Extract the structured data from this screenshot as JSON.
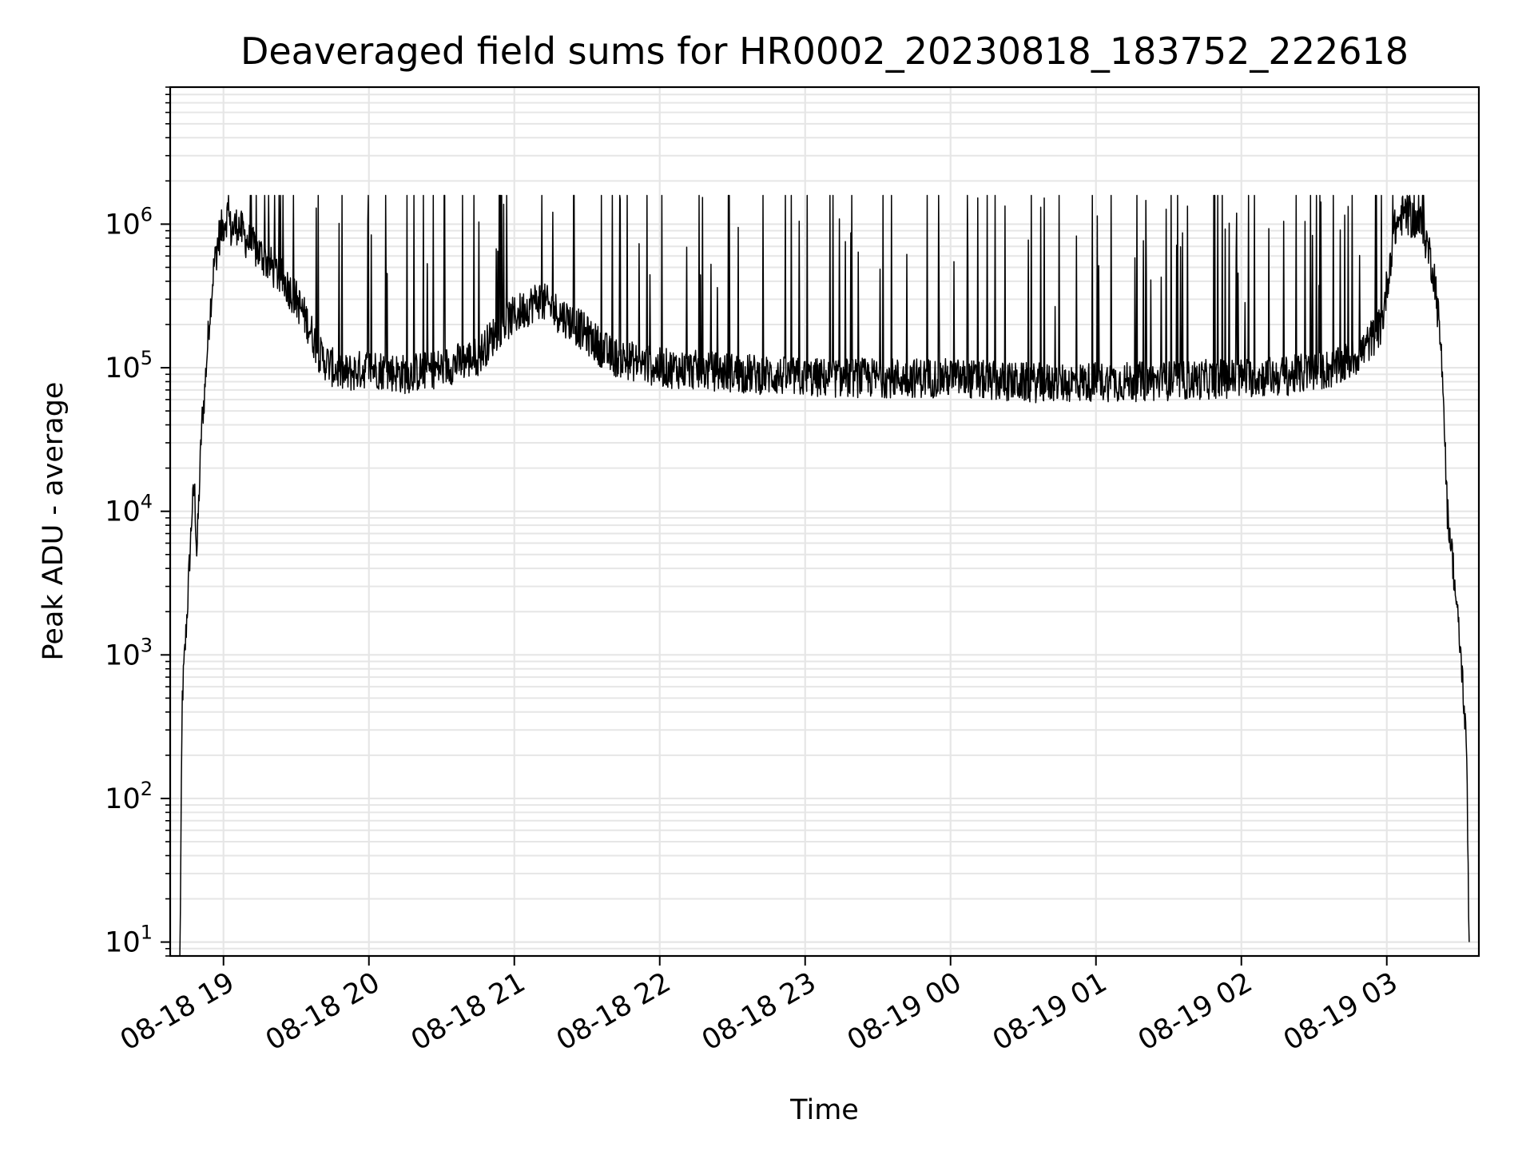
{
  "chart_data": {
    "type": "line",
    "title": "Deaveraged field sums for HR0002_20230818_183752_222618",
    "xlabel": "Time",
    "ylabel": "Peak ADU - average",
    "yscale": "log",
    "ylim": [
      8,
      9000000
    ],
    "xlim": [
      "2023-08-18 18:38",
      "2023-08-19 03:38"
    ],
    "grid": true,
    "line_color": "#000000",
    "grid_color": "#e6e6e6",
    "x_ticks": [
      {
        "value": "2023-08-18 19:00",
        "label": "08-18 19"
      },
      {
        "value": "2023-08-18 20:00",
        "label": "08-18 20"
      },
      {
        "value": "2023-08-18 21:00",
        "label": "08-18 21"
      },
      {
        "value": "2023-08-18 22:00",
        "label": "08-18 22"
      },
      {
        "value": "2023-08-18 23:00",
        "label": "08-18 23"
      },
      {
        "value": "2023-08-19 00:00",
        "label": "08-19 00"
      },
      {
        "value": "2023-08-19 01:00",
        "label": "08-19 01"
      },
      {
        "value": "2023-08-19 02:00",
        "label": "08-19 02"
      },
      {
        "value": "2023-08-19 03:00",
        "label": "08-19 03"
      }
    ],
    "y_ticks": [
      {
        "value": 10,
        "base": "10",
        "exp": "1"
      },
      {
        "value": 100,
        "base": "10",
        "exp": "2"
      },
      {
        "value": 1000,
        "base": "10",
        "exp": "3"
      },
      {
        "value": 10000,
        "base": "10",
        "exp": "4"
      },
      {
        "value": 100000,
        "base": "10",
        "exp": "5"
      },
      {
        "value": 1000000,
        "base": "10",
        "exp": "6"
      }
    ],
    "series": [
      {
        "x": [
          "2023-08-18 18:42",
          "2023-08-18 18:43",
          "2023-08-18 18:45",
          "2023-08-18 18:47",
          "2023-08-18 18:48",
          "2023-08-18 18:49",
          "2023-08-18 18:51",
          "2023-08-18 18:52",
          "2023-08-18 18:54",
          "2023-08-18 18:56",
          "2023-08-18 18:58",
          "2023-08-18 19:00",
          "2023-08-18 19:02",
          "2023-08-18 19:03",
          "2023-08-18 19:06",
          "2023-08-18 19:09",
          "2023-08-18 19:12",
          "2023-08-18 19:16",
          "2023-08-18 19:20",
          "2023-08-18 19:25",
          "2023-08-18 19:30",
          "2023-08-18 19:35",
          "2023-08-18 19:40",
          "2023-08-18 19:45",
          "2023-08-18 19:50",
          "2023-08-18 20:00",
          "2023-08-18 20:15",
          "2023-08-18 20:30",
          "2023-08-18 20:45",
          "2023-08-18 20:55",
          "2023-08-18 21:10",
          "2023-08-18 21:25",
          "2023-08-18 21:40",
          "2023-08-18 22:00",
          "2023-08-18 22:20",
          "2023-08-18 22:40",
          "2023-08-18 23:00",
          "2023-08-18 23:20",
          "2023-08-18 23:40",
          "2023-08-19 00:00",
          "2023-08-19 00:20",
          "2023-08-19 00:40",
          "2023-08-19 01:00",
          "2023-08-19 01:20",
          "2023-08-19 01:40",
          "2023-08-19 02:00",
          "2023-08-19 02:20",
          "2023-08-19 02:40",
          "2023-08-19 02:50",
          "2023-08-19 02:58",
          "2023-08-19 03:03",
          "2023-08-19 03:07",
          "2023-08-19 03:10",
          "2023-08-19 03:14",
          "2023-08-19 03:17",
          "2023-08-19 03:20",
          "2023-08-19 03:23",
          "2023-08-19 03:25",
          "2023-08-19 03:27",
          "2023-08-19 03:29",
          "2023-08-19 03:31",
          "2023-08-19 03:33",
          "2023-08-19 03:34"
        ],
        "y": [
          8,
          500,
          2000,
          10000,
          15000,
          5000,
          40000,
          60000,
          200000,
          500000,
          800000,
          1000000,
          1200000,
          900000,
          1000000,
          800000,
          700000,
          600000,
          500000,
          400000,
          300000,
          200000,
          120000,
          100000,
          90000,
          100000,
          90000,
          100000,
          120000,
          200000,
          300000,
          200000,
          120000,
          100000,
          95000,
          90000,
          85000,
          85000,
          85000,
          85000,
          80000,
          78000,
          80000,
          80000,
          82000,
          85000,
          88000,
          100000,
          130000,
          200000,
          900000,
          1200000,
          1100000,
          1000000,
          700000,
          400000,
          100000,
          10000,
          5000,
          2000,
          800,
          200,
          10
        ]
      }
    ]
  }
}
